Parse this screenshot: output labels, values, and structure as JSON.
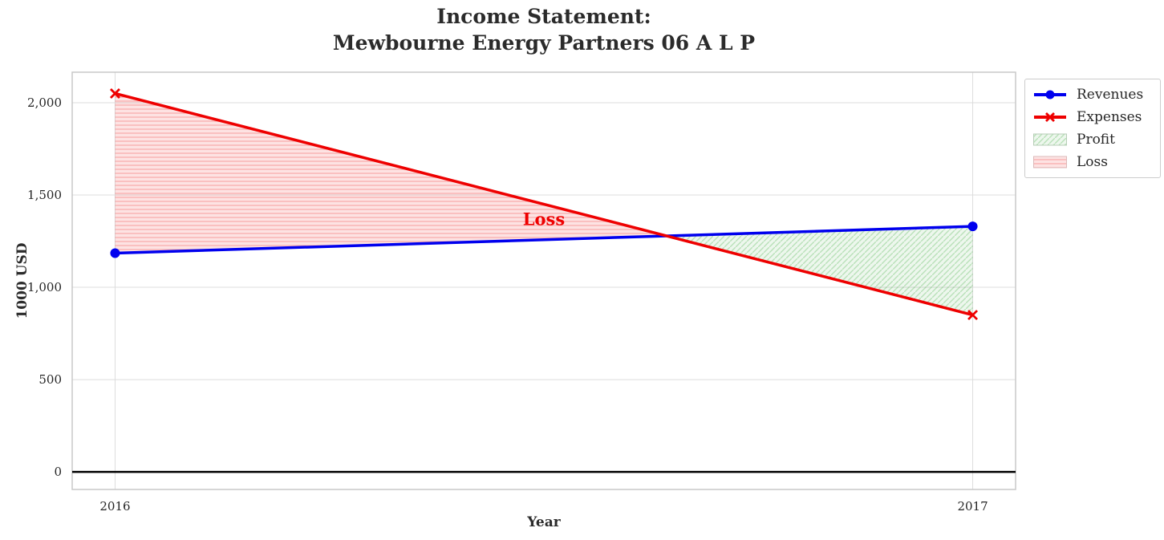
{
  "title": {
    "line1": "Income Statement:",
    "line2": "Mewbourne Energy Partners 06 A L P"
  },
  "axes": {
    "x_label": "Year",
    "y_label": "1000 USD"
  },
  "legend": {
    "items": [
      {
        "label": "Revenues",
        "type": "line",
        "color": "#0000ee",
        "marker": "circle"
      },
      {
        "label": "Expenses",
        "type": "line",
        "color": "#ee0000",
        "marker": "x"
      },
      {
        "label": "Profit",
        "type": "patch",
        "color": "#008000",
        "hatch": "diagonal"
      },
      {
        "label": "Loss",
        "type": "patch",
        "color": "#ee0000",
        "hatch": "horizontal"
      }
    ]
  },
  "chart_data": {
    "type": "line",
    "title": "Income Statement:\nMewbourne Energy Partners 06 A L P",
    "xlabel": "Year",
    "ylabel": "1000 USD",
    "x": [
      2016,
      2017
    ],
    "series": [
      {
        "name": "Revenues",
        "values": [
          1185,
          1330
        ],
        "color": "#0000ee",
        "marker": "circle"
      },
      {
        "name": "Expenses",
        "values": [
          2050,
          850
        ],
        "color": "#ee0000",
        "marker": "x"
      }
    ],
    "fills": [
      {
        "name": "Loss",
        "condition": "expenses above revenues",
        "x_range": [
          2016,
          2016.643
        ],
        "hatch": "horizontal",
        "color": "#ee0000"
      },
      {
        "name": "Profit",
        "condition": "revenues above expenses",
        "x_range": [
          2016.643,
          2017
        ],
        "hatch": "diagonal",
        "color": "#008000"
      }
    ],
    "annotation": {
      "text": "Loss",
      "x": 2016.5,
      "y": 1370,
      "color": "#ee0000"
    },
    "xticks": [
      2016,
      2017
    ],
    "xtick_labels": [
      "2016",
      "2017"
    ],
    "yticks": [
      0,
      500,
      1000,
      1500,
      2000
    ],
    "ytick_labels": [
      "0",
      "500",
      "1,000",
      "1,500",
      "2,000"
    ],
    "xlim": [
      2015.95,
      2017.05
    ],
    "ylim": [
      -95,
      2165
    ],
    "grid": true,
    "zero_line": true,
    "legend_position": "outside upper right"
  }
}
